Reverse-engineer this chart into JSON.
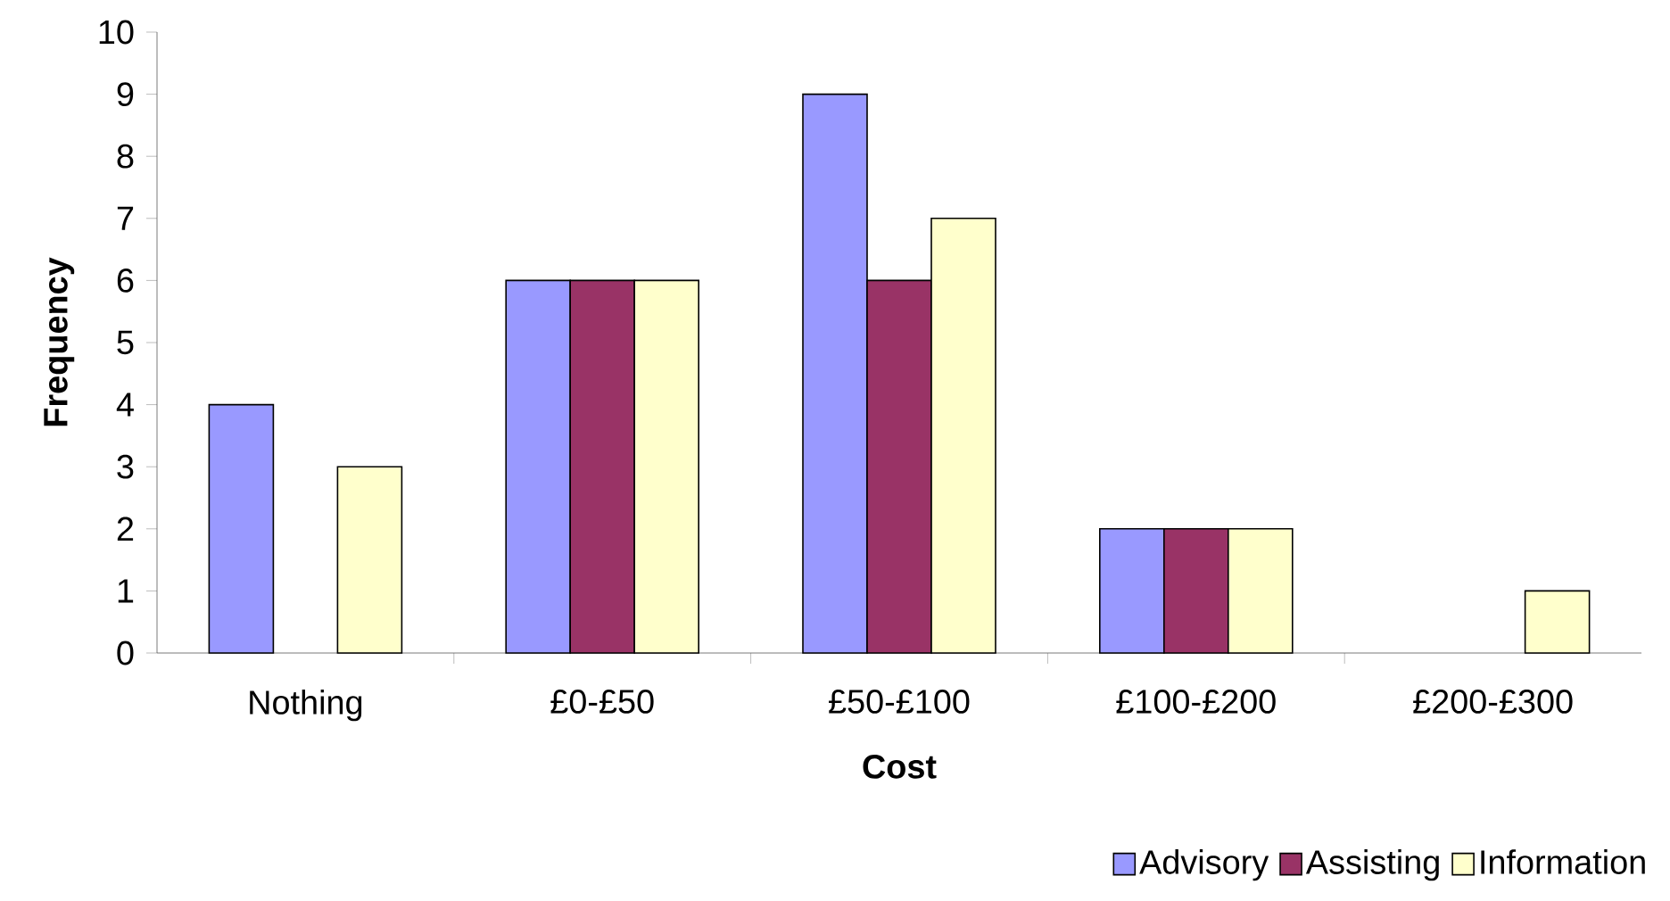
{
  "chart_data": {
    "type": "bar",
    "xlabel": "Cost",
    "ylabel": "Frequency",
    "categories": [
      "Nothing",
      "£0-£50",
      "£50-£100",
      "£100-£200",
      "£200-£300"
    ],
    "series": [
      {
        "name": "Advisory",
        "color": "#9999ff",
        "values": [
          4,
          6,
          9,
          2,
          null
        ]
      },
      {
        "name": "Assisting",
        "color": "#993366",
        "values": [
          null,
          6,
          6,
          2,
          null
        ]
      },
      {
        "name": "Information",
        "color": "#ffffcc",
        "values": [
          3,
          6,
          7,
          2,
          1
        ]
      }
    ],
    "ylim": [
      0,
      10
    ],
    "yticks": [
      0,
      1,
      2,
      3,
      4,
      5,
      6,
      7,
      8,
      9,
      10
    ],
    "legend": "bottom right"
  }
}
